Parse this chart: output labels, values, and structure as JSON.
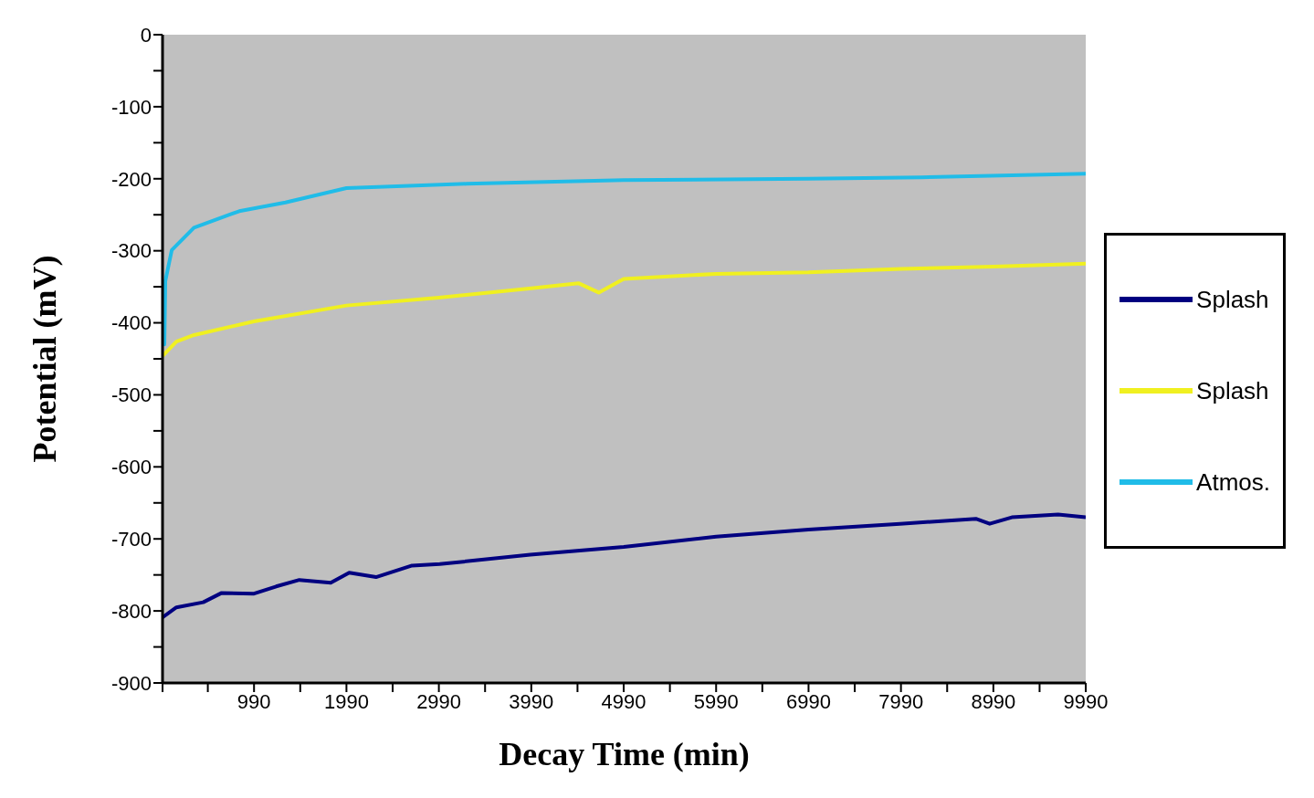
{
  "chart_data": {
    "type": "line",
    "xlabel": "Decay Time (min)",
    "ylabel": "Potential (mV)",
    "xlim": [
      0,
      9990
    ],
    "ylim": [
      -900,
      0
    ],
    "xticks": [
      {
        "value": 0,
        "label": null
      },
      {
        "value": 490,
        "label": null
      },
      990,
      {
        "value": 1490,
        "label": null
      },
      1990,
      {
        "value": 2490,
        "label": null
      },
      2990,
      {
        "value": 3490,
        "label": null
      },
      3990,
      {
        "value": 4490,
        "label": null
      },
      4990,
      {
        "value": 5490,
        "label": null
      },
      5990,
      {
        "value": 6490,
        "label": null
      },
      6990,
      {
        "value": 7490,
        "label": null
      },
      7990,
      {
        "value": 8490,
        "label": null
      },
      8990,
      {
        "value": 9490,
        "label": null
      },
      9990
    ],
    "yticks": [
      -900,
      {
        "value": -850,
        "label": null
      },
      -800,
      {
        "value": -750,
        "label": null
      },
      -700,
      {
        "value": -650,
        "label": null
      },
      -600,
      {
        "value": -550,
        "label": null
      },
      -500,
      {
        "value": -450,
        "label": null
      },
      -400,
      {
        "value": -350,
        "label": null
      },
      -300,
      {
        "value": -250,
        "label": null
      },
      -200,
      {
        "value": -150,
        "label": null
      },
      -100,
      {
        "value": -50,
        "label": null
      },
      0
    ],
    "grid": false,
    "legend": "right",
    "marker": "none",
    "line_style": "solid",
    "series": [
      {
        "name": "Splash",
        "color": "#000080",
        "x": [
          0,
          150,
          440,
          640,
          990,
          1230,
          1480,
          1820,
          2020,
          2310,
          2700,
          3000,
          3980,
          4990,
          5990,
          6990,
          7980,
          8800,
          8950,
          9190,
          9690,
          9990
        ],
        "values": [
          -809,
          -795,
          -788,
          -775,
          -776,
          -766,
          -757,
          -761,
          -747,
          -753,
          -737,
          -735,
          -722,
          -711,
          -697,
          -687,
          -679,
          -672,
          -679,
          -670,
          -666,
          -670
        ]
      },
      {
        "name": "Splash",
        "color": "#f0f020",
        "x": [
          0,
          150,
          340,
          990,
          1990,
          2990,
          3990,
          4500,
          4720,
          4990,
          5990,
          6990,
          7990,
          8990,
          9990
        ],
        "values": [
          -446,
          -426,
          -417,
          -398,
          -376,
          -365,
          -352,
          -345,
          -358,
          -339,
          -332,
          -330,
          -325,
          -322,
          -318
        ]
      },
      {
        "name": "Atmos.",
        "color": "#20bce8",
        "x": [
          0,
          20,
          30,
          100,
          340,
          830,
          1330,
          1990,
          3290,
          4990,
          6990,
          8210,
          9990
        ],
        "values": [
          -340,
          -430,
          -342,
          -299,
          -268,
          -245,
          -233,
          -213,
          -207,
          -202,
          -200,
          -198,
          -193
        ]
      }
    ]
  }
}
